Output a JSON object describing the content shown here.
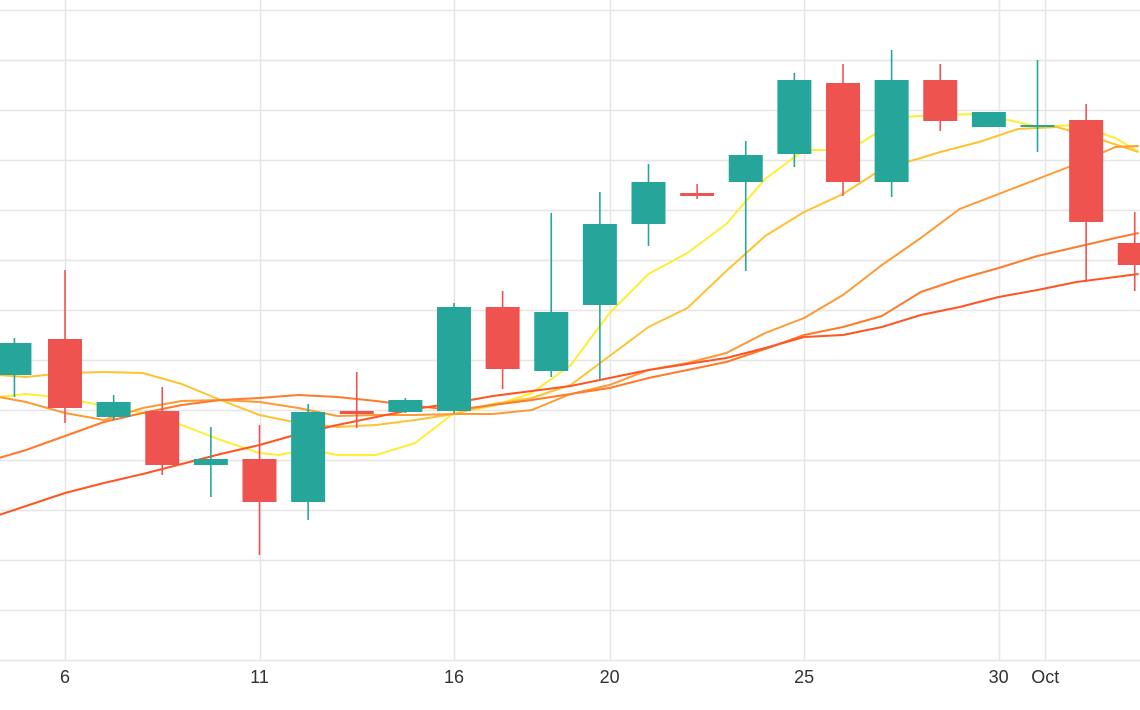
{
  "chart_data": {
    "type": "candlestick",
    "title": "",
    "xlabel": "",
    "ylabel": "",
    "x_tick_labels": [
      {
        "day": 6,
        "label": "6"
      },
      {
        "day": 11,
        "label": "11"
      },
      {
        "day": 16,
        "label": "16"
      },
      {
        "day": 20,
        "label": "20"
      },
      {
        "day": 25,
        "label": "25"
      },
      {
        "day": 30,
        "label": "30"
      },
      {
        "day": 31.2,
        "label": "Oct"
      }
    ],
    "xlim": [
      4.3,
      33.6
    ],
    "ylim": [
      0,
      66
    ],
    "grid": true,
    "colors": {
      "up": "#26a69a",
      "down": "#ef5350",
      "grid": "#e6e6e6",
      "ma_lines": [
        "#ffee33",
        "#ffc233",
        "#ff9933",
        "#ff7a2b",
        "#ff5522"
      ]
    },
    "candles": [
      {
        "x": 4.7,
        "open": 28.5,
        "high": 32.2,
        "low": 26.3,
        "close": 31.7
      },
      {
        "x": 6.0,
        "open": 32.1,
        "high": 39.0,
        "low": 23.7,
        "close": 25.2
      },
      {
        "x": 7.25,
        "open": 24.3,
        "high": 26.5,
        "low": 24.0,
        "close": 25.8
      },
      {
        "x": 8.5,
        "open": 24.9,
        "high": 27.3,
        "low": 18.5,
        "close": 19.5
      },
      {
        "x": 9.75,
        "open": 19.5,
        "high": 23.3,
        "low": 16.3,
        "close": 20.1
      },
      {
        "x": 11.0,
        "open": 20.1,
        "high": 23.5,
        "low": 10.5,
        "close": 15.8
      },
      {
        "x": 12.25,
        "open": 15.8,
        "high": 25.6,
        "low": 14.0,
        "close": 24.8
      },
      {
        "x": 13.5,
        "open": 24.9,
        "high": 28.8,
        "low": 23.2,
        "close": 24.6
      },
      {
        "x": 14.75,
        "open": 24.8,
        "high": 26.2,
        "low": 24.7,
        "close": 26.0
      },
      {
        "x": 16.0,
        "open": 24.9,
        "high": 35.7,
        "low": 24.7,
        "close": 35.3
      },
      {
        "x": 17.25,
        "open": 35.3,
        "high": 36.9,
        "low": 27.1,
        "close": 29.1
      },
      {
        "x": 18.5,
        "open": 28.9,
        "high": 44.7,
        "low": 28.3,
        "close": 34.8
      },
      {
        "x": 19.75,
        "open": 35.5,
        "high": 46.8,
        "low": 28.0,
        "close": 43.6
      },
      {
        "x": 21.0,
        "open": 43.6,
        "high": 49.6,
        "low": 41.4,
        "close": 47.8
      },
      {
        "x": 22.25,
        "open": 46.7,
        "high": 47.6,
        "low": 46.1,
        "close": 46.4
      },
      {
        "x": 23.5,
        "open": 47.8,
        "high": 51.9,
        "low": 38.9,
        "close": 50.5
      },
      {
        "x": 24.75,
        "open": 50.6,
        "high": 58.7,
        "low": 49.3,
        "close": 58.0
      },
      {
        "x": 26.0,
        "open": 57.7,
        "high": 59.6,
        "low": 46.4,
        "close": 47.8
      },
      {
        "x": 27.25,
        "open": 47.8,
        "high": 61.0,
        "low": 46.3,
        "close": 58.0
      },
      {
        "x": 28.5,
        "open": 58.0,
        "high": 59.6,
        "low": 52.9,
        "close": 53.9
      },
      {
        "x": 29.75,
        "open": 53.3,
        "high": 54.8,
        "low": 53.3,
        "close": 54.8
      },
      {
        "x": 31.0,
        "open": 53.3,
        "high": 60.0,
        "low": 50.8,
        "close": 53.5
      },
      {
        "x": 32.25,
        "open": 54.0,
        "high": 55.6,
        "low": 37.8,
        "close": 43.8
      },
      {
        "x": 33.5,
        "open": 41.7,
        "high": 44.8,
        "low": 36.9,
        "close": 39.5
      }
    ],
    "series": [
      {
        "color": "#ffee33",
        "points": [
          [
            4.3,
            26.3
          ],
          [
            5.0,
            26.6
          ],
          [
            6.0,
            26.2
          ],
          [
            7.0,
            25.4
          ],
          [
            8.0,
            24.7
          ],
          [
            9.0,
            23.5
          ],
          [
            10.0,
            22.0
          ],
          [
            11.0,
            20.7
          ],
          [
            11.5,
            20.5
          ],
          [
            12.25,
            21.1
          ],
          [
            13.0,
            20.5
          ],
          [
            14.0,
            20.5
          ],
          [
            15.0,
            21.7
          ],
          [
            16.0,
            24.7
          ],
          [
            17.0,
            25.4
          ],
          [
            18.0,
            26.7
          ],
          [
            19.0,
            29.5
          ],
          [
            20.0,
            34.7
          ],
          [
            21.0,
            38.6
          ],
          [
            22.0,
            40.7
          ],
          [
            23.0,
            43.6
          ],
          [
            24.0,
            48.1
          ],
          [
            25.0,
            51.0
          ],
          [
            26.0,
            51.0
          ],
          [
            26.5,
            51.8
          ],
          [
            27.5,
            54.3
          ],
          [
            28.5,
            54.5
          ],
          [
            29.5,
            54.6
          ],
          [
            30.5,
            53.8
          ],
          [
            31.0,
            53.3
          ],
          [
            32.0,
            53.5
          ],
          [
            33.0,
            52.2
          ],
          [
            33.6,
            50.8
          ]
        ]
      },
      {
        "color": "#ffc233",
        "points": [
          [
            4.3,
            28.5
          ],
          [
            5.0,
            28.3
          ],
          [
            6.0,
            28.7
          ],
          [
            7.0,
            28.8
          ],
          [
            8.0,
            28.7
          ],
          [
            9.0,
            27.6
          ],
          [
            10.0,
            26.0
          ],
          [
            11.0,
            24.5
          ],
          [
            12.0,
            23.7
          ],
          [
            13.0,
            23.3
          ],
          [
            14.0,
            23.5
          ],
          [
            15.0,
            24.0
          ],
          [
            16.0,
            24.6
          ],
          [
            17.0,
            25.6
          ],
          [
            18.0,
            26.2
          ],
          [
            19.0,
            27.5
          ],
          [
            20.0,
            30.4
          ],
          [
            21.0,
            33.3
          ],
          [
            22.0,
            35.2
          ],
          [
            23.0,
            38.9
          ],
          [
            24.0,
            42.4
          ],
          [
            25.0,
            44.8
          ],
          [
            26.0,
            46.6
          ],
          [
            27.0,
            49.1
          ],
          [
            28.0,
            50.2
          ],
          [
            28.5,
            50.8
          ],
          [
            29.5,
            51.8
          ],
          [
            30.5,
            53.1
          ],
          [
            31.5,
            53.3
          ],
          [
            32.5,
            52.2
          ],
          [
            33.6,
            50.8
          ]
        ]
      },
      {
        "color": "#ff9933",
        "points": [
          [
            4.3,
            26.3
          ],
          [
            5.0,
            25.8
          ],
          [
            6.0,
            24.7
          ],
          [
            7.0,
            24.0
          ],
          [
            8.0,
            25.2
          ],
          [
            9.0,
            25.9
          ],
          [
            10.0,
            26.0
          ],
          [
            11.0,
            25.8
          ],
          [
            12.0,
            25.2
          ],
          [
            13.0,
            24.4
          ],
          [
            14.0,
            24.5
          ],
          [
            15.0,
            24.5
          ],
          [
            16.0,
            24.6
          ],
          [
            17.0,
            24.6
          ],
          [
            18.0,
            25.0
          ],
          [
            19.0,
            26.6
          ],
          [
            20.0,
            27.5
          ],
          [
            21.0,
            29.0
          ],
          [
            22.0,
            29.7
          ],
          [
            23.0,
            30.7
          ],
          [
            24.0,
            32.7
          ],
          [
            25.0,
            34.2
          ],
          [
            26.0,
            36.5
          ],
          [
            27.0,
            39.5
          ],
          [
            28.0,
            42.2
          ],
          [
            29.0,
            45.1
          ],
          [
            30.0,
            46.6
          ],
          [
            31.0,
            48.1
          ],
          [
            32.0,
            49.6
          ],
          [
            33.0,
            51.3
          ],
          [
            33.6,
            51.4
          ]
        ]
      },
      {
        "color": "#ff7a2b",
        "points": [
          [
            4.3,
            20.2
          ],
          [
            5.0,
            21.0
          ],
          [
            6.0,
            22.4
          ],
          [
            7.0,
            23.8
          ],
          [
            8.0,
            24.7
          ],
          [
            9.0,
            25.5
          ],
          [
            10.0,
            26.0
          ],
          [
            11.0,
            26.2
          ],
          [
            12.0,
            26.5
          ],
          [
            13.0,
            26.3
          ],
          [
            14.0,
            25.9
          ],
          [
            15.0,
            25.4
          ],
          [
            16.0,
            25.0
          ],
          [
            17.0,
            25.5
          ],
          [
            18.0,
            26.0
          ],
          [
            19.0,
            26.6
          ],
          [
            20.0,
            27.2
          ],
          [
            21.0,
            28.2
          ],
          [
            22.0,
            29.0
          ],
          [
            23.0,
            29.8
          ],
          [
            24.0,
            31.1
          ],
          [
            25.0,
            32.5
          ],
          [
            26.0,
            33.3
          ],
          [
            27.0,
            34.4
          ],
          [
            28.0,
            36.8
          ],
          [
            29.0,
            38.1
          ],
          [
            30.0,
            39.2
          ],
          [
            31.0,
            40.4
          ],
          [
            32.0,
            41.3
          ],
          [
            33.0,
            42.2
          ],
          [
            33.6,
            42.7
          ]
        ]
      },
      {
        "color": "#ff5522",
        "points": [
          [
            4.3,
            14.5
          ],
          [
            5.0,
            15.4
          ],
          [
            6.0,
            16.7
          ],
          [
            7.0,
            17.7
          ],
          [
            8.0,
            18.6
          ],
          [
            9.0,
            19.6
          ],
          [
            10.0,
            20.6
          ],
          [
            11.0,
            21.5
          ],
          [
            12.0,
            22.6
          ],
          [
            13.0,
            23.5
          ],
          [
            14.0,
            24.3
          ],
          [
            15.0,
            25.1
          ],
          [
            16.0,
            25.7
          ],
          [
            17.0,
            26.4
          ],
          [
            18.0,
            26.9
          ],
          [
            19.0,
            27.4
          ],
          [
            20.0,
            28.2
          ],
          [
            21.0,
            29.0
          ],
          [
            22.0,
            29.6
          ],
          [
            23.0,
            30.2
          ],
          [
            24.0,
            31.2
          ],
          [
            25.0,
            32.3
          ],
          [
            26.0,
            32.5
          ],
          [
            27.0,
            33.3
          ],
          [
            28.0,
            34.5
          ],
          [
            29.0,
            35.3
          ],
          [
            30.0,
            36.3
          ],
          [
            31.0,
            37.0
          ],
          [
            32.0,
            37.8
          ],
          [
            33.0,
            38.3
          ],
          [
            33.6,
            38.6
          ]
        ]
      }
    ]
  }
}
